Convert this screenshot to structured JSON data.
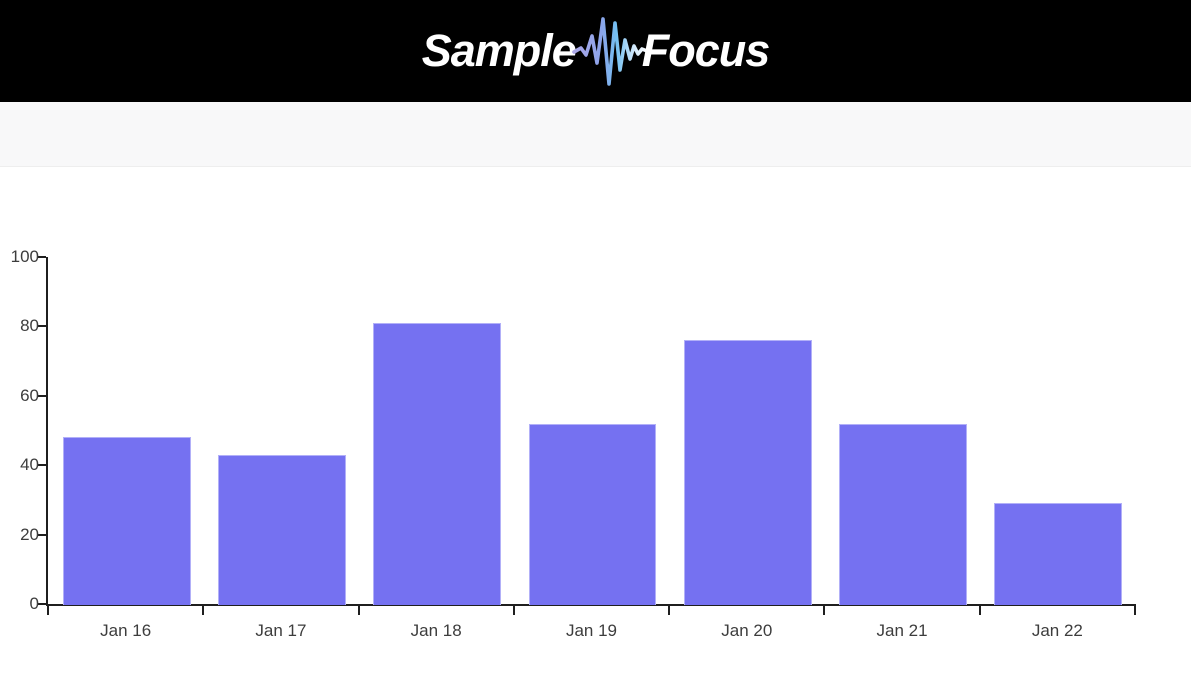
{
  "header": {
    "logo": {
      "part1": "Sample",
      "part2": "Focus"
    }
  },
  "chart_data": {
    "type": "bar",
    "title": "",
    "xlabel": "",
    "ylabel": "",
    "categories": [
      "Jan 16",
      "Jan 17",
      "Jan 18",
      "Jan 19",
      "Jan 20",
      "Jan 21",
      "Jan 22"
    ],
    "values": [
      48,
      43,
      81,
      52,
      76,
      52,
      29
    ],
    "y_ticks": [
      0,
      20,
      40,
      60,
      80,
      100
    ],
    "ylim": [
      0,
      100
    ],
    "grid": false,
    "legend": false,
    "bar_color": "#7571f1",
    "bar_border_color": "#b2b0f8",
    "axis_color": "#1f1f1f",
    "tick_label_color": "#3d3d3d"
  },
  "colors": {
    "header_bg": "#000000",
    "subheader_bg": "#f8f8f9",
    "logo_text": "#ffffff",
    "waveform_gradient_start": "#aca7e8",
    "waveform_gradient_mid": "#74c0f2",
    "waveform_gradient_end": "#ffffff"
  }
}
